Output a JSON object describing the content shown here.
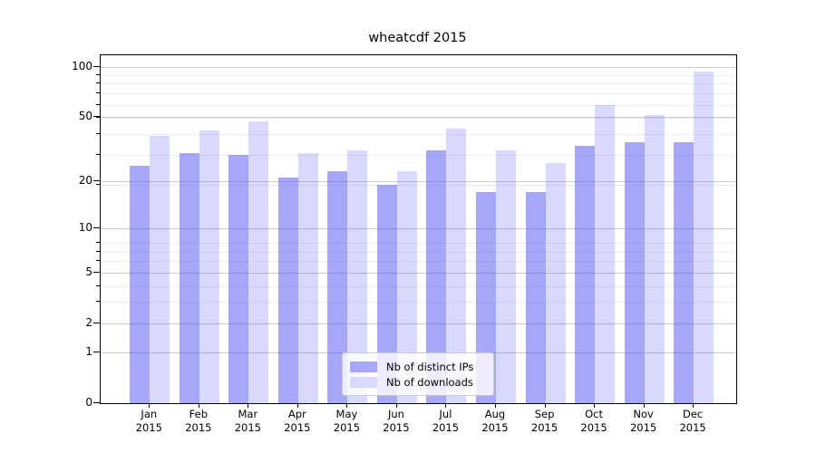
{
  "title": "wheatcdf 2015",
  "legend": {
    "items": [
      {
        "label": "Nb of distinct IPs",
        "color": "#a7a7f7"
      },
      {
        "label": "Nb of downloads",
        "color": "#d9d9fb"
      }
    ]
  },
  "colors": {
    "bar_distinct_ips": "rgba(80,80,240,0.5)",
    "bar_downloads": "rgba(80,80,240,0.22)",
    "grid_major": "#cccccc",
    "grid_minor": "#ededed",
    "axis": "#000000"
  },
  "chart_data": {
    "type": "bar",
    "title": "wheatcdf 2015",
    "categories": [
      "Jan 2015",
      "Feb 2015",
      "Mar 2015",
      "Apr 2015",
      "May 2015",
      "Jun 2015",
      "Jul 2015",
      "Aug 2015",
      "Sep 2015",
      "Oct 2015",
      "Nov 2015",
      "Dec 2015"
    ],
    "series": [
      {
        "name": "Nb of distinct IPs",
        "values": [
          25,
          30,
          29,
          21,
          23,
          19,
          31,
          17,
          17,
          33,
          35,
          35
        ]
      },
      {
        "name": "Nb of downloads",
        "values": [
          38,
          41,
          47,
          30,
          31,
          23,
          42,
          31,
          26,
          59,
          51,
          94
        ]
      }
    ],
    "xlabel": "",
    "ylabel": "",
    "yscale": "log(1+y)",
    "y_tick_values": [
      0,
      1,
      2,
      5,
      10,
      20,
      50,
      100
    ],
    "y_minor_gridlines_at_1plusY": [
      2,
      3,
      4,
      5,
      6,
      7,
      8,
      9,
      20,
      30,
      40,
      50,
      60,
      70,
      80,
      90
    ],
    "ylim": [
      0,
      101
    ],
    "grid": true,
    "legend_position": "lower center"
  }
}
